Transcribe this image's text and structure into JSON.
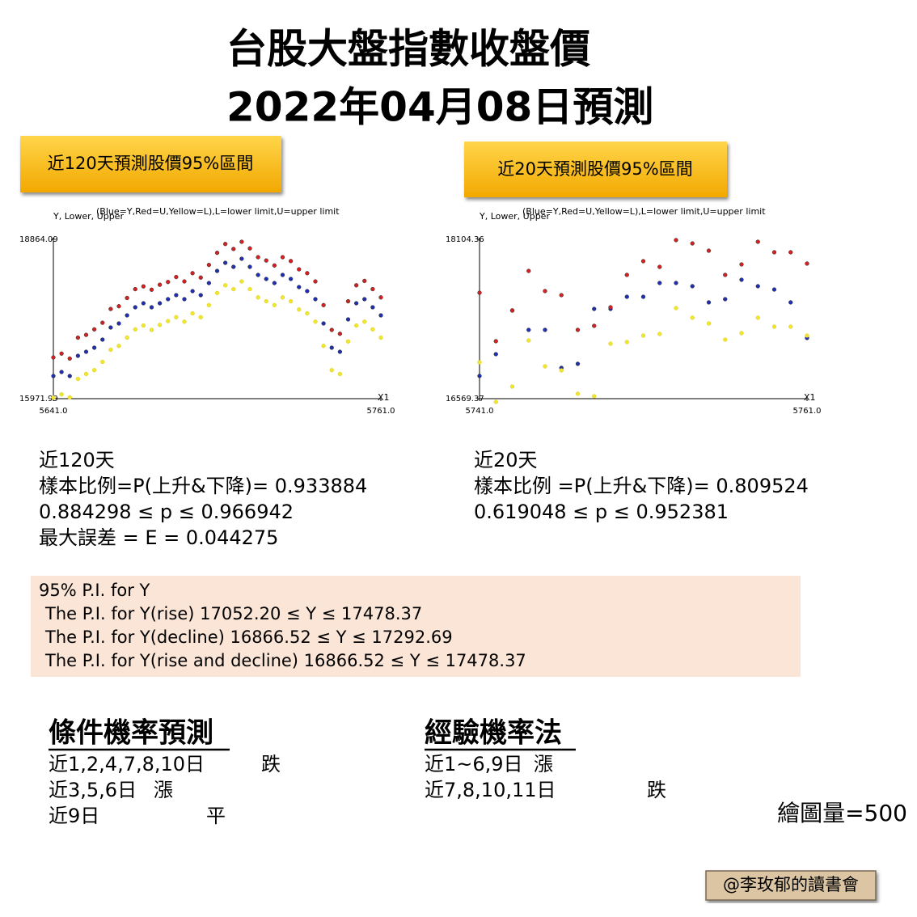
{
  "title": [
    "台股大盤指數收盤價",
    "2022年04月08日預測"
  ],
  "badges": [
    "近120天預測股價95%區間",
    "近20天預測股價95%區間"
  ],
  "chart_data": [
    {
      "type": "scatter",
      "y_label": "Y, Lower, Upper",
      "note": "(Blue=Y,Red=U,Yellow=L),L=lower limit,U=upper limit",
      "x_label": "X1",
      "xlim": [
        5641,
        5761
      ],
      "ylim": [
        15971.99,
        18864.09
      ],
      "xticks": [
        {
          "value": 5641,
          "label": "5641.0"
        },
        {
          "value": 5761,
          "label": "5761.0"
        }
      ],
      "yticks": [
        15971.99,
        18864.09
      ],
      "x": [
        5641,
        5644,
        5647,
        5650,
        5653,
        5656,
        5659,
        5662,
        5665,
        5668,
        5671,
        5674,
        5677,
        5680,
        5683,
        5686,
        5689,
        5692,
        5695,
        5698,
        5701,
        5704,
        5707,
        5710,
        5713,
        5716,
        5719,
        5722,
        5725,
        5728,
        5731,
        5734,
        5737,
        5740,
        5743,
        5746,
        5749,
        5752,
        5755,
        5758,
        5761
      ],
      "series": [
        {
          "name": "Blue=Y",
          "color": "#1f2fb0",
          "values": [
            16383,
            16456,
            16383,
            16750,
            16823,
            16897,
            17044,
            17264,
            17337,
            17484,
            17631,
            17704,
            17631,
            17704,
            17778,
            17851,
            17778,
            17924,
            17851,
            18071,
            18291,
            18438,
            18365,
            18512,
            18365,
            18218,
            18145,
            18071,
            18218,
            18145,
            17998,
            17924,
            17778,
            17337,
            16897,
            16823,
            17411,
            17704,
            17778,
            17631,
            17484
          ]
        },
        {
          "name": "Red=U",
          "color": "#d42020",
          "values": [
            16720,
            16790,
            16700,
            17080,
            17130,
            17230,
            17350,
            17600,
            17650,
            17800,
            17960,
            18010,
            17950,
            18040,
            18090,
            18180,
            18100,
            18250,
            18170,
            18400,
            18620,
            18780,
            18690,
            18820,
            18700,
            18540,
            18480,
            18390,
            18540,
            18470,
            18320,
            18250,
            18100,
            17670,
            17220,
            17150,
            17740,
            18030,
            18110,
            17960,
            17810
          ]
        },
        {
          "name": "Yellow=L",
          "color": "#f0e630",
          "values": [
            15990,
            16050,
            15995,
            16330,
            16420,
            16490,
            16640,
            16860,
            16930,
            17080,
            17230,
            17300,
            17220,
            17310,
            17380,
            17450,
            17370,
            17520,
            17450,
            17670,
            17890,
            18030,
            17960,
            18100,
            17960,
            17810,
            17740,
            17670,
            17810,
            17740,
            17590,
            17520,
            17370,
            16930,
            16490,
            16420,
            17010,
            17300,
            17370,
            17230,
            17080
          ]
        }
      ]
    },
    {
      "type": "scatter",
      "y_label": "Y, Lower, Upper",
      "note": "(Blue=Y,Red=U,Yellow=L),L=lower limit,U=upper limit",
      "x_label": "X1",
      "xlim": [
        5741,
        5761
      ],
      "ylim": [
        16569.37,
        18104.36
      ],
      "xticks": [
        {
          "value": 5741,
          "label": "5741.0"
        },
        {
          "value": 5761,
          "label": "5761.0"
        }
      ],
      "yticks": [
        16569.37,
        18104.36
      ],
      "x": [
        5741,
        5742,
        5743,
        5744,
        5745,
        5746,
        5747,
        5748,
        5749,
        5750,
        5751,
        5752,
        5753,
        5754,
        5755,
        5756,
        5757,
        5758,
        5759,
        5760,
        5761
      ],
      "series": [
        {
          "name": "Blue=Y",
          "color": "#1f2fb0",
          "values": [
            16788,
            16998,
            17419,
            17232,
            17232,
            16866,
            16905,
            17434,
            17434,
            17551,
            17551,
            17684,
            17684,
            17653,
            17497,
            17528,
            17715,
            17653,
            17621,
            17497,
            17154
          ]
        },
        {
          "name": "Red=U",
          "color": "#d42020",
          "values": [
            17590,
            17123,
            17419,
            17800,
            17606,
            17567,
            17232,
            17271,
            17450,
            17762,
            17894,
            17839,
            18097,
            18065,
            17995,
            17762,
            17863,
            18081,
            17980,
            17980,
            17871
          ]
        },
        {
          "name": "Yellow=L",
          "color": "#f0e630",
          "values": [
            16920,
            16538,
            16686,
            17130,
            16881,
            16842,
            16617,
            16593,
            17099,
            17115,
            17177,
            17193,
            17442,
            17349,
            17294,
            17138,
            17201,
            17349,
            17263,
            17263,
            17177
          ]
        }
      ]
    }
  ],
  "stats_left": [
    "近120天",
    "樣本比例=P(上升&下降)= 0.933884",
    "0.884298 ≤ p ≤ 0.966942",
    "最大誤差 = E = 0.044275"
  ],
  "stats_right": [
    "近20天",
    "樣本比例 =P(上升&下降)= 0.809524",
    "0.619048 ≤ p ≤ 0.952381"
  ],
  "pi_box": [
    "95% P.I. for Y",
    "The P.I. for Y(rise) 17052.20 ≤ Y ≤ 17478.37",
    "The P.I. for Y(decline) 16866.52 ≤ Y ≤ 17292.69",
    "The P.I. for Y(rise and decline) 16866.52 ≤ Y ≤ 17478.37"
  ],
  "conditional": {
    "heading": "條件機率預測",
    "rows": [
      [
        "近1,2,4,7,8,10日",
        "跌"
      ],
      [
        "近3,5,6日",
        "漲"
      ],
      [
        "近9日",
        "平"
      ]
    ]
  },
  "empirical": {
    "heading": "經驗機率法",
    "rows": [
      [
        "近1~6,9日",
        "漲"
      ],
      [
        "近7,8,10,11日",
        "跌"
      ]
    ]
  },
  "draw_count": "繪圖量=500",
  "credit": "@李玫郁的讀書會"
}
